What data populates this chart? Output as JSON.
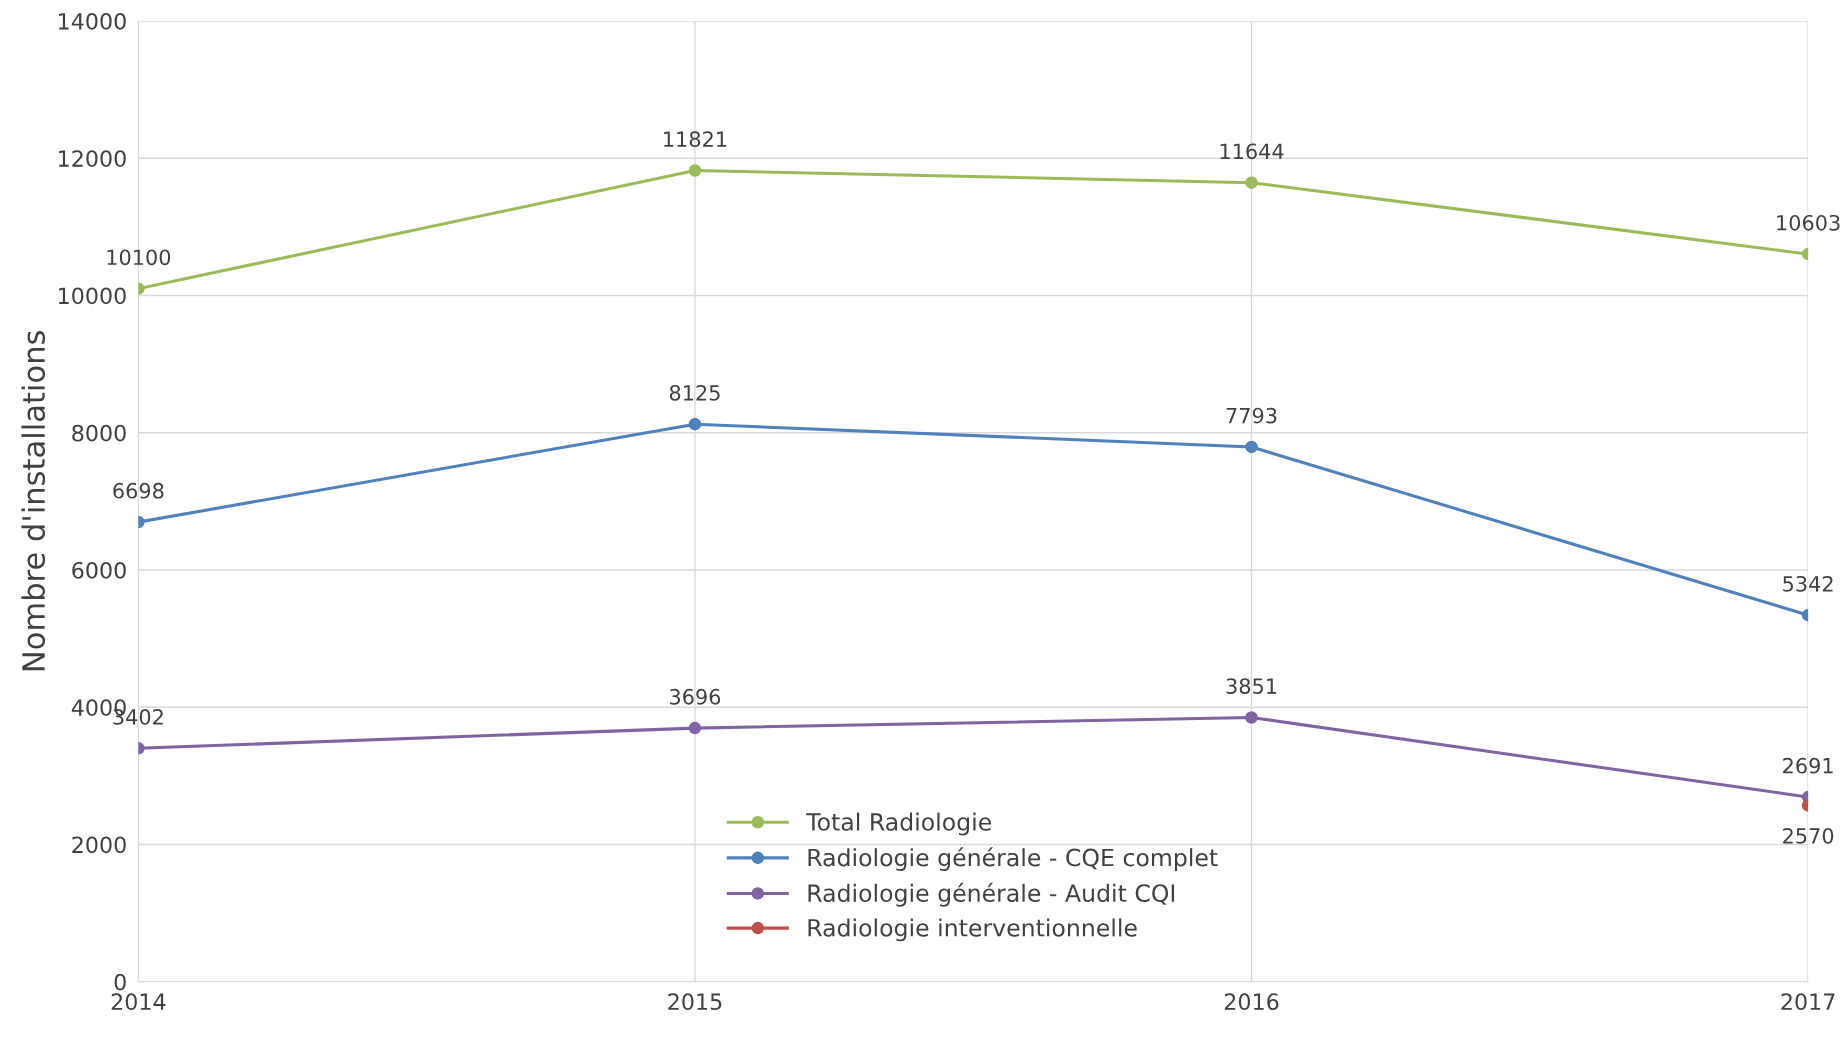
{
  "chart_data": {
    "type": "line",
    "ylabel": "Nombre d'installations",
    "x": [
      2014,
      2015,
      2016,
      2017
    ],
    "series": [
      {
        "name": "Total Radiologie",
        "color": "#9bbb59",
        "values": [
          10100,
          11821,
          11644,
          10603
        ]
      },
      {
        "name": "Radiologie générale - CQE complet",
        "color": "#4f81bd",
        "values": [
          6698,
          8125,
          7793,
          5342
        ]
      },
      {
        "name": "Radiologie générale - Audit CQI",
        "color": "#8064a2",
        "values": [
          3402,
          3696,
          3851,
          2691
        ]
      },
      {
        "name": "Radiologie interventionnelle",
        "color": "#c0504d",
        "values": [
          null,
          null,
          null,
          2570
        ]
      }
    ],
    "xlim": [
      2014,
      2017
    ],
    "xticks": [
      2014,
      2015,
      2016,
      2017
    ],
    "ylim": [
      0,
      14000
    ],
    "yticks": [
      0,
      2000,
      4000,
      6000,
      8000,
      10000,
      12000,
      14000
    ],
    "grid": true,
    "legend": "bottom",
    "marker": "circle",
    "line_style": "solid",
    "data_labels": true
  }
}
